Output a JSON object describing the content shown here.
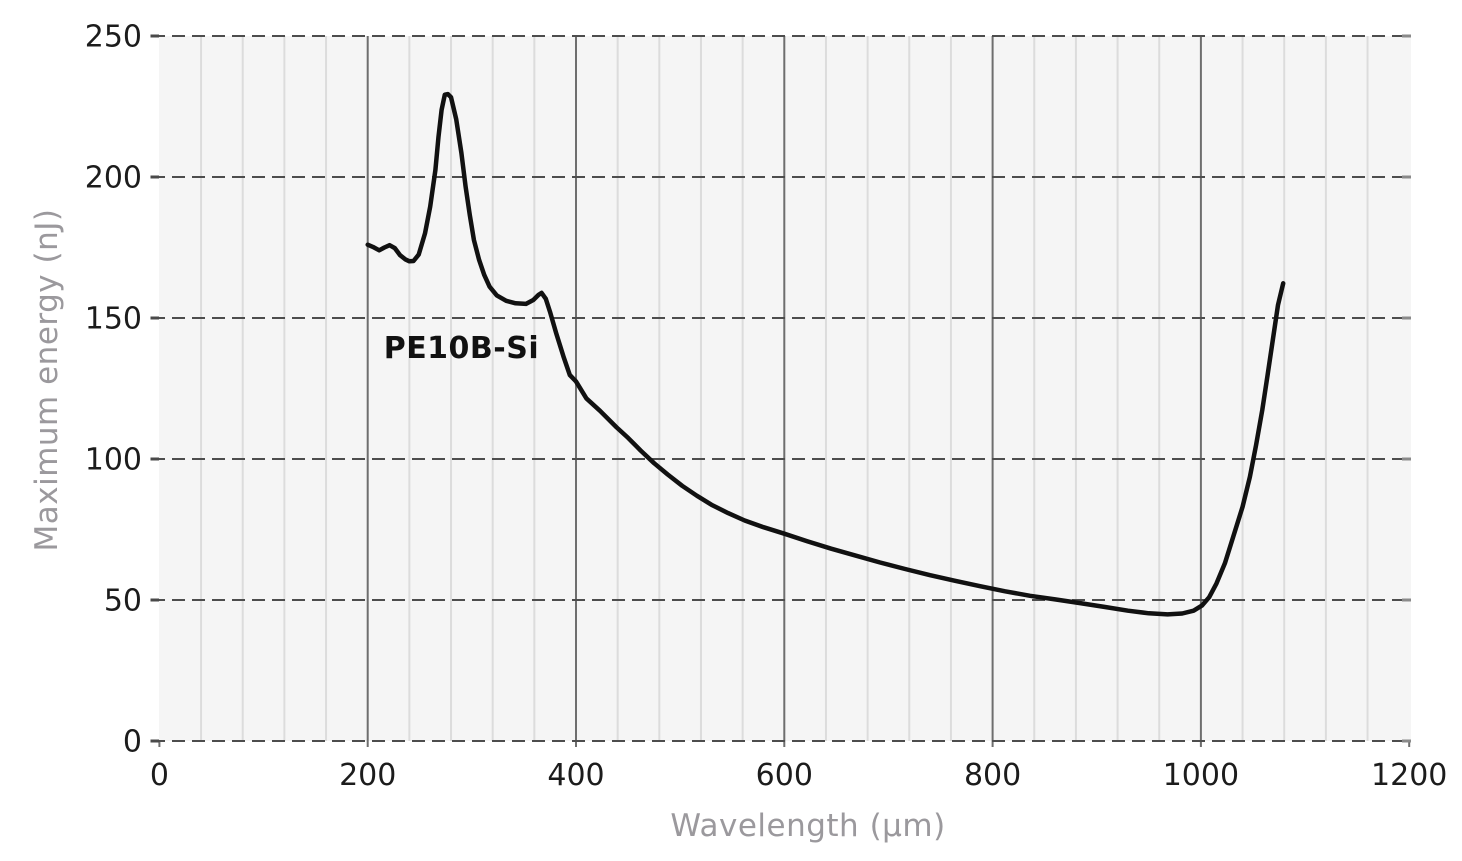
{
  "figure": {
    "kind": "line-chart",
    "background": "#ffffff"
  },
  "chart_data": {
    "type": "line",
    "title": "",
    "xlabel": "Wavelength (µm)",
    "ylabel": "Maximum energy (nJ)",
    "xlim": [
      0,
      1200
    ],
    "ylim": [
      0,
      250
    ],
    "x_major_ticks": [
      0,
      200,
      400,
      600,
      800,
      1000,
      1200
    ],
    "x_tick_labels": [
      "0",
      "200",
      "400",
      "600",
      "800",
      "1000",
      "1200"
    ],
    "x_minor_step": 40,
    "y_ticks": [
      0,
      50,
      100,
      150,
      200,
      250
    ],
    "y_tick_labels": [
      "0",
      "50",
      "100",
      "150",
      "200",
      "250"
    ],
    "grid": {
      "horizontal_style": "dashed",
      "vertical_minor": true,
      "vertical_major": true
    },
    "legend": "none",
    "series": [
      {
        "name": "PE10B-Si",
        "label_annotation": {
          "text": "PE10B-Si",
          "x": 290,
          "y": 139
        },
        "x": [
          200,
          205,
          211,
          216,
          221,
          226,
          231,
          236,
          240,
          244,
          249,
          255,
          260,
          265,
          268,
          271,
          274,
          277,
          280,
          285,
          290,
          294,
          298,
          302,
          307,
          312,
          317,
          324,
          333,
          342,
          352,
          359,
          364,
          367,
          371,
          375,
          381,
          388,
          394,
          400,
          410,
          423,
          439,
          450,
          462,
          475,
          488,
          502,
          516,
          530,
          546,
          562,
          580,
          600,
          622,
          645,
          668,
          692,
          716,
          740,
          764,
          788,
          812,
          836,
          860,
          884,
          908,
          930,
          950,
          968,
          982,
          993,
          1001,
          1008,
          1015,
          1023,
          1031,
          1040,
          1047,
          1053,
          1059,
          1064,
          1069,
          1074,
          1079
        ],
        "y": [
          176,
          175.2,
          174,
          175,
          175.8,
          174.8,
          172.3,
          170.8,
          170.1,
          170.2,
          172.5,
          180,
          189.5,
          202.5,
          214.3,
          223.8,
          229.2,
          229.4,
          228.3,
          220.5,
          208.5,
          196.6,
          186.5,
          177.7,
          170.6,
          165.2,
          161.1,
          158,
          156.1,
          155.2,
          155,
          156.4,
          158.2,
          158.9,
          156.8,
          152.2,
          144.6,
          136.3,
          129.8,
          127.5,
          121.5,
          117.1,
          111.2,
          107.5,
          103,
          98.5,
          94.5,
          90.5,
          87,
          83.8,
          80.8,
          78.2,
          75.8,
          73.5,
          70.8,
          68.2,
          65.8,
          63.3,
          61,
          58.8,
          56.8,
          54.9,
          53.1,
          51.5,
          50.2,
          48.9,
          47.5,
          46.2,
          45.3,
          44.9,
          45.2,
          46.2,
          48,
          51,
          55.9,
          63,
          72.4,
          83.1,
          93.7,
          105,
          117.4,
          129.8,
          142.2,
          154.6,
          162.3
        ]
      }
    ],
    "colors": {
      "line": "#111111",
      "plot_bg": "#f5f5f5",
      "grid_minor": "#dcdcdc",
      "grid_major": "#6e6e6e",
      "grid_dashed": "#4d4d4d",
      "tick_label": "#1c1c1c",
      "axis_title": "#9b999d",
      "annotation": "#111111",
      "left_tick": "#4a4a4a",
      "right_tick": "#8a8a8a"
    }
  }
}
